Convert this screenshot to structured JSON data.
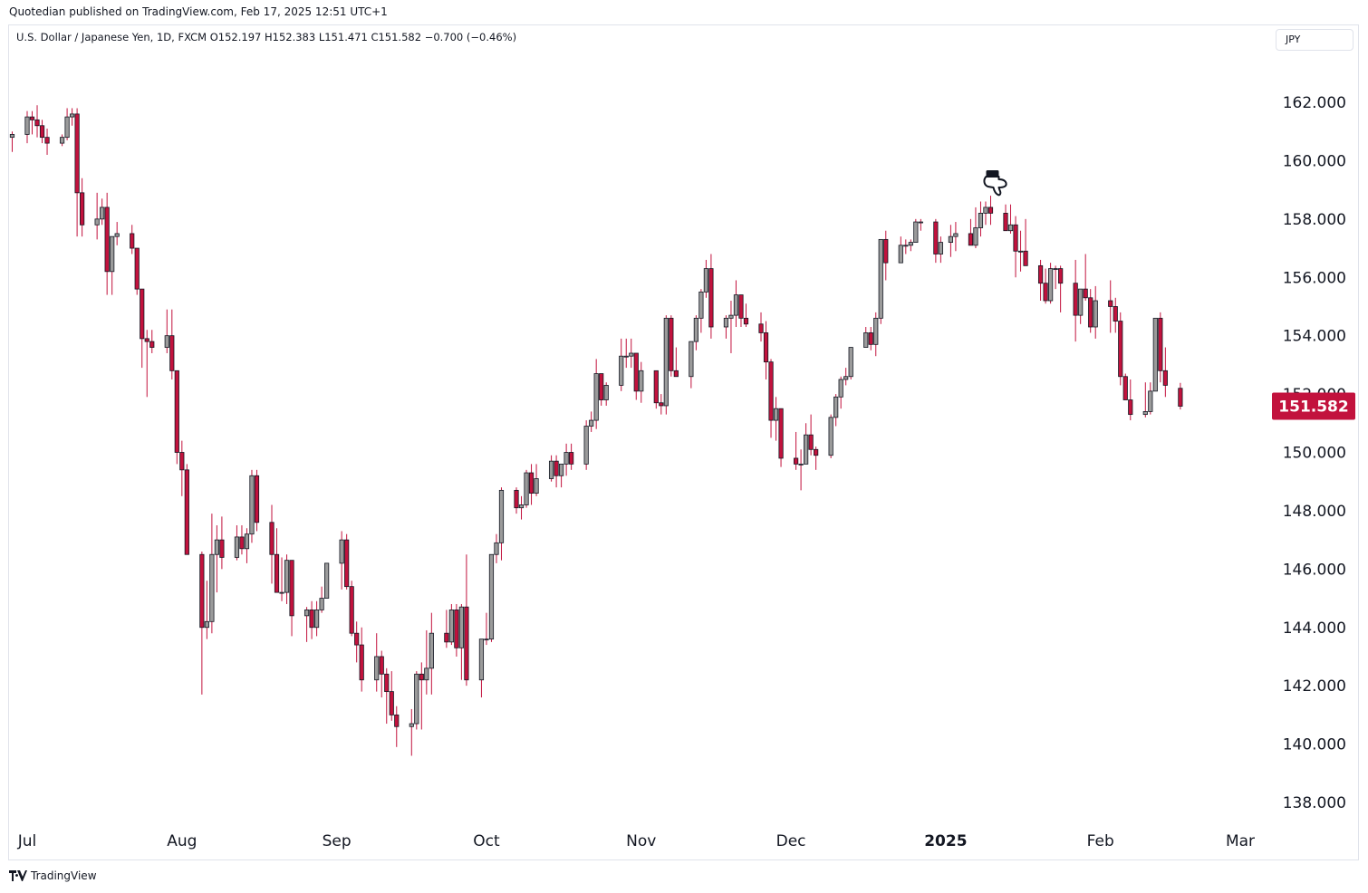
{
  "header": {
    "published": "Quotedian published on TradingView.com, Feb 17, 2025 12:51 UTC+1",
    "symbol_line": "U.S. Dollar / Japanese Yen, 1D, FXCM  O152.197  H152.383  L151.471  C151.582  −0.700 (−0.46%)",
    "currency": "JPY"
  },
  "footer": {
    "brand": "TradingView"
  },
  "colors": {
    "up": "#9b9b9b",
    "down": "#c2123d",
    "wick": "#c2123d",
    "last_price_bg": "#c2123d"
  },
  "annotation": {
    "icon": "pointing-hand-icon",
    "date": "2025-01-10"
  },
  "chart_data": {
    "type": "candlestick",
    "title": "U.S. Dollar / Japanese Yen, 1D, FXCM",
    "ylim": [
      137.0,
      164.5
    ],
    "yticks": [
      "162.000",
      "160.000",
      "158.000",
      "156.000",
      "154.000",
      "152.000",
      "150.000",
      "148.000",
      "146.000",
      "144.000",
      "142.000",
      "140.000",
      "138.000"
    ],
    "xticks": [
      {
        "label": "Jul",
        "date": "2024-07-01",
        "bold": false
      },
      {
        "label": "Aug",
        "date": "2024-08-01",
        "bold": false
      },
      {
        "label": "Sep",
        "date": "2024-09-01",
        "bold": false
      },
      {
        "label": "Oct",
        "date": "2024-10-01",
        "bold": false
      },
      {
        "label": "Nov",
        "date": "2024-11-01",
        "bold": false
      },
      {
        "label": "Dec",
        "date": "2024-12-01",
        "bold": false
      },
      {
        "label": "2025",
        "date": "2025-01-01",
        "bold": true
      },
      {
        "label": "Feb",
        "date": "2025-02-01",
        "bold": false
      },
      {
        "label": "Mar",
        "date": "2025-03-01",
        "bold": false
      }
    ],
    "last_price": "151.582",
    "candles": [
      [
        "2024-06-28",
        160.8,
        161.0,
        160.3,
        160.9
      ],
      [
        "2024-07-01",
        160.9,
        161.7,
        160.6,
        161.5
      ],
      [
        "2024-07-02",
        161.5,
        161.7,
        160.9,
        161.4
      ],
      [
        "2024-07-03",
        161.4,
        161.9,
        160.8,
        161.2
      ],
      [
        "2024-07-04",
        161.2,
        161.4,
        160.6,
        160.8
      ],
      [
        "2024-07-05",
        160.8,
        161.1,
        160.2,
        160.6
      ],
      [
        "2024-07-08",
        160.6,
        160.9,
        160.5,
        160.8
      ],
      [
        "2024-07-09",
        160.8,
        161.8,
        160.7,
        161.5
      ],
      [
        "2024-07-10",
        161.5,
        161.8,
        161.2,
        161.6
      ],
      [
        "2024-07-11",
        161.6,
        161.8,
        157.4,
        158.9
      ],
      [
        "2024-07-12",
        158.9,
        159.4,
        157.4,
        157.8
      ],
      [
        "2024-07-15",
        157.8,
        158.9,
        157.3,
        158.0
      ],
      [
        "2024-07-16",
        158.0,
        158.7,
        157.8,
        158.4
      ],
      [
        "2024-07-17",
        158.4,
        158.9,
        155.4,
        156.2
      ],
      [
        "2024-07-18",
        156.2,
        157.4,
        155.4,
        157.4
      ],
      [
        "2024-07-19",
        157.4,
        157.9,
        157.1,
        157.5
      ],
      [
        "2024-07-22",
        157.5,
        157.8,
        156.8,
        157.0
      ],
      [
        "2024-07-23",
        157.0,
        157.0,
        155.4,
        155.6
      ],
      [
        "2024-07-24",
        155.6,
        155.6,
        152.9,
        153.9
      ],
      [
        "2024-07-25",
        153.9,
        154.2,
        151.9,
        153.8
      ],
      [
        "2024-07-26",
        153.8,
        154.2,
        153.4,
        153.6
      ],
      [
        "2024-07-29",
        153.6,
        154.9,
        153.4,
        154.0
      ],
      [
        "2024-07-30",
        154.0,
        154.9,
        152.5,
        152.8
      ],
      [
        "2024-07-31",
        152.8,
        152.8,
        149.6,
        150.0
      ],
      [
        "2024-08-01",
        150.0,
        150.4,
        148.5,
        149.4
      ],
      [
        "2024-08-02",
        149.4,
        149.6,
        146.5,
        146.5
      ],
      [
        "2024-08-05",
        146.5,
        146.6,
        141.7,
        144.0
      ],
      [
        "2024-08-06",
        144.0,
        145.6,
        143.6,
        144.2
      ],
      [
        "2024-08-07",
        144.2,
        147.9,
        143.8,
        146.5
      ],
      [
        "2024-08-08",
        146.5,
        147.5,
        145.2,
        147.0
      ],
      [
        "2024-08-09",
        147.0,
        147.8,
        146.0,
        146.4
      ],
      [
        "2024-08-12",
        146.4,
        147.5,
        146.3,
        147.1
      ],
      [
        "2024-08-13",
        147.1,
        147.5,
        146.5,
        146.7
      ],
      [
        "2024-08-14",
        146.7,
        147.4,
        146.2,
        147.2
      ],
      [
        "2024-08-15",
        147.2,
        149.4,
        146.9,
        149.2
      ],
      [
        "2024-08-16",
        149.2,
        149.4,
        147.3,
        147.6
      ],
      [
        "2024-08-19",
        147.6,
        148.2,
        145.5,
        146.5
      ],
      [
        "2024-08-20",
        146.5,
        147.4,
        145.2,
        145.2
      ],
      [
        "2024-08-21",
        145.2,
        146.4,
        144.9,
        145.2
      ],
      [
        "2024-08-22",
        145.2,
        146.5,
        144.8,
        146.3
      ],
      [
        "2024-08-23",
        146.3,
        146.3,
        143.7,
        144.4
      ],
      [
        "2024-08-26",
        144.4,
        144.7,
        143.5,
        144.6
      ],
      [
        "2024-08-27",
        144.6,
        144.9,
        143.6,
        144.0
      ],
      [
        "2024-08-28",
        144.0,
        144.9,
        143.7,
        144.6
      ],
      [
        "2024-08-29",
        144.6,
        145.4,
        144.5,
        145.0
      ],
      [
        "2024-08-30",
        145.0,
        146.2,
        145.0,
        146.2
      ],
      [
        "2024-09-02",
        146.2,
        147.3,
        145.3,
        147.0
      ],
      [
        "2024-09-03",
        147.0,
        147.2,
        145.3,
        145.4
      ],
      [
        "2024-09-04",
        145.4,
        145.6,
        143.7,
        143.8
      ],
      [
        "2024-09-05",
        143.8,
        144.2,
        142.8,
        143.4
      ],
      [
        "2024-09-06",
        143.4,
        144.0,
        141.8,
        142.2
      ],
      [
        "2024-09-09",
        142.2,
        143.8,
        141.8,
        143.0
      ],
      [
        "2024-09-10",
        143.0,
        143.2,
        141.6,
        142.4
      ],
      [
        "2024-09-11",
        142.4,
        142.6,
        140.7,
        141.8
      ],
      [
        "2024-09-12",
        141.8,
        142.5,
        140.8,
        141.0
      ],
      [
        "2024-09-13",
        141.0,
        141.3,
        139.9,
        140.6
      ],
      [
        "2024-09-16",
        140.6,
        141.2,
        139.6,
        140.7
      ],
      [
        "2024-09-17",
        140.7,
        142.5,
        140.5,
        142.4
      ],
      [
        "2024-09-18",
        142.4,
        142.8,
        140.5,
        142.2
      ],
      [
        "2024-09-19",
        142.2,
        143.9,
        141.7,
        142.6
      ],
      [
        "2024-09-20",
        142.6,
        144.5,
        141.7,
        143.8
      ],
      [
        "2024-09-23",
        143.8,
        144.6,
        143.3,
        143.5
      ],
      [
        "2024-09-24",
        143.5,
        144.8,
        143.4,
        144.6
      ],
      [
        "2024-09-25",
        144.6,
        144.8,
        143.0,
        143.3
      ],
      [
        "2024-09-26",
        143.3,
        144.8,
        142.2,
        144.7
      ],
      [
        "2024-09-27",
        144.7,
        146.5,
        142.0,
        142.2
      ],
      [
        "2024-09-30",
        142.2,
        143.6,
        141.6,
        143.6
      ],
      [
        "2024-10-01",
        143.6,
        144.5,
        143.4,
        143.6
      ],
      [
        "2024-10-02",
        143.6,
        146.5,
        143.5,
        146.5
      ],
      [
        "2024-10-03",
        146.5,
        147.2,
        146.2,
        146.9
      ],
      [
        "2024-10-04",
        146.9,
        148.8,
        146.3,
        148.7
      ],
      [
        "2024-10-07",
        148.7,
        148.8,
        147.9,
        148.1
      ],
      [
        "2024-10-08",
        148.1,
        148.5,
        147.7,
        148.2
      ],
      [
        "2024-10-09",
        148.2,
        149.4,
        148.1,
        149.3
      ],
      [
        "2024-10-10",
        149.3,
        149.6,
        148.2,
        148.6
      ],
      [
        "2024-10-11",
        148.6,
        149.6,
        148.5,
        149.1
      ],
      [
        "2024-10-14",
        149.1,
        149.9,
        149.0,
        149.7
      ],
      [
        "2024-10-15",
        149.7,
        149.9,
        148.8,
        149.2
      ],
      [
        "2024-10-16",
        149.2,
        149.6,
        148.8,
        149.6
      ],
      [
        "2024-10-17",
        149.6,
        150.3,
        149.2,
        150.0
      ],
      [
        "2024-10-18",
        150.0,
        150.3,
        149.4,
        149.6
      ],
      [
        "2024-10-21",
        149.6,
        151.1,
        149.4,
        150.9
      ],
      [
        "2024-10-22",
        150.9,
        151.4,
        150.7,
        151.1
      ],
      [
        "2024-10-23",
        151.1,
        153.2,
        150.8,
        152.7
      ],
      [
        "2024-10-24",
        152.7,
        152.7,
        151.6,
        151.8
      ],
      [
        "2024-10-25",
        151.8,
        152.4,
        151.6,
        152.3
      ],
      [
        "2024-10-28",
        152.3,
        153.9,
        152.1,
        153.3
      ],
      [
        "2024-10-29",
        153.3,
        153.9,
        152.9,
        153.3
      ],
      [
        "2024-10-30",
        153.3,
        153.9,
        152.9,
        153.4
      ],
      [
        "2024-10-31",
        153.4,
        153.4,
        151.8,
        152.1
      ],
      [
        "2024-11-01",
        152.1,
        153.1,
        151.7,
        152.8
      ],
      [
        "2024-11-04",
        152.8,
        152.8,
        151.5,
        151.7
      ],
      [
        "2024-11-05",
        151.7,
        152.0,
        151.3,
        151.6
      ],
      [
        "2024-11-06",
        151.6,
        154.7,
        151.3,
        154.6
      ],
      [
        "2024-11-07",
        154.6,
        154.7,
        152.6,
        152.8
      ],
      [
        "2024-11-08",
        152.8,
        153.6,
        152.6,
        152.6
      ],
      [
        "2024-11-11",
        152.6,
        153.8,
        152.2,
        153.8
      ],
      [
        "2024-11-12",
        153.8,
        154.7,
        153.5,
        154.6
      ],
      [
        "2024-11-13",
        154.6,
        155.6,
        154.1,
        155.5
      ],
      [
        "2024-11-14",
        155.5,
        156.6,
        155.3,
        156.3
      ],
      [
        "2024-11-15",
        156.3,
        156.8,
        153.9,
        154.3
      ],
      [
        "2024-11-18",
        154.3,
        154.7,
        153.9,
        154.6
      ],
      [
        "2024-11-19",
        154.6,
        155.2,
        153.4,
        154.7
      ],
      [
        "2024-11-20",
        154.7,
        155.9,
        154.3,
        155.4
      ],
      [
        "2024-11-21",
        155.4,
        155.4,
        154.3,
        154.6
      ],
      [
        "2024-11-22",
        154.6,
        155.1,
        154.3,
        154.4
      ],
      [
        "2024-11-25",
        154.4,
        154.8,
        153.8,
        154.1
      ],
      [
        "2024-11-26",
        154.1,
        154.5,
        152.5,
        153.1
      ],
      [
        "2024-11-27",
        153.1,
        153.2,
        150.5,
        151.1
      ],
      [
        "2024-11-28",
        151.1,
        151.9,
        150.4,
        151.5
      ],
      [
        "2024-11-29",
        151.5,
        151.5,
        149.5,
        149.8
      ],
      [
        "2024-12-02",
        149.8,
        150.7,
        149.4,
        149.6
      ],
      [
        "2024-12-03",
        149.6,
        150.1,
        148.7,
        149.6
      ],
      [
        "2024-12-04",
        149.6,
        151.0,
        149.6,
        150.6
      ],
      [
        "2024-12-05",
        150.6,
        151.3,
        149.9,
        150.1
      ],
      [
        "2024-12-06",
        150.1,
        150.2,
        149.4,
        149.9
      ],
      [
        "2024-12-09",
        149.9,
        151.3,
        149.8,
        151.2
      ],
      [
        "2024-12-10",
        151.2,
        152.0,
        150.9,
        151.9
      ],
      [
        "2024-12-11",
        151.9,
        152.6,
        151.5,
        152.5
      ],
      [
        "2024-12-12",
        152.5,
        152.9,
        152.3,
        152.6
      ],
      [
        "2024-12-13",
        152.6,
        153.6,
        152.5,
        153.6
      ],
      [
        "2024-12-16",
        153.6,
        154.3,
        153.6,
        154.1
      ],
      [
        "2024-12-17",
        154.1,
        154.3,
        153.5,
        153.7
      ],
      [
        "2024-12-18",
        153.7,
        154.8,
        153.3,
        154.6
      ],
      [
        "2024-12-19",
        154.6,
        157.2,
        154.4,
        157.3
      ],
      [
        "2024-12-20",
        157.3,
        157.6,
        155.9,
        156.5
      ],
      [
        "2024-12-23",
        156.5,
        157.4,
        156.5,
        157.1
      ],
      [
        "2024-12-24",
        157.1,
        157.3,
        156.8,
        157.1
      ],
      [
        "2024-12-25",
        157.1,
        157.3,
        156.9,
        157.2
      ],
      [
        "2024-12-26",
        157.2,
        158.0,
        157.2,
        157.9
      ],
      [
        "2024-12-27",
        157.9,
        158.0,
        157.6,
        157.9
      ],
      [
        "2024-12-30",
        157.9,
        158.0,
        156.5,
        156.8
      ],
      [
        "2024-12-31",
        156.8,
        157.4,
        156.5,
        157.2
      ],
      [
        "2025-01-02",
        157.2,
        157.8,
        156.7,
        157.4
      ],
      [
        "2025-01-03",
        157.4,
        157.9,
        156.9,
        157.5
      ],
      [
        "2025-01-06",
        157.5,
        158.0,
        157.1,
        157.1
      ],
      [
        "2025-01-07",
        157.1,
        158.4,
        157.0,
        157.7
      ],
      [
        "2025-01-08",
        157.7,
        158.6,
        157.4,
        158.2
      ],
      [
        "2025-01-09",
        158.2,
        158.6,
        157.8,
        158.4
      ],
      [
        "2025-01-10",
        158.4,
        158.8,
        157.8,
        158.2
      ],
      [
        "2025-01-13",
        158.2,
        158.5,
        157.6,
        157.6
      ],
      [
        "2025-01-14",
        157.6,
        158.5,
        157.5,
        157.8
      ],
      [
        "2025-01-15",
        157.8,
        158.1,
        156.0,
        156.9
      ],
      [
        "2025-01-16",
        156.9,
        157.6,
        156.2,
        156.9
      ],
      [
        "2025-01-17",
        156.9,
        158.0,
        156.4,
        156.4
      ],
      [
        "2025-01-20",
        156.4,
        156.6,
        155.2,
        155.8
      ],
      [
        "2025-01-21",
        155.8,
        156.3,
        155.1,
        155.2
      ],
      [
        "2025-01-22",
        155.2,
        156.5,
        155.1,
        156.3
      ],
      [
        "2025-01-23",
        156.3,
        156.4,
        155.6,
        156.3
      ],
      [
        "2025-01-24",
        156.3,
        156.4,
        154.8,
        155.8
      ],
      [
        "2025-01-27",
        155.8,
        156.6,
        153.8,
        154.7
      ],
      [
        "2025-01-28",
        154.7,
        155.6,
        154.4,
        155.6
      ],
      [
        "2025-01-29",
        155.6,
        156.8,
        155.2,
        155.3
      ],
      [
        "2025-01-30",
        155.3,
        155.6,
        154.1,
        154.3
      ],
      [
        "2025-01-31",
        154.3,
        155.7,
        153.9,
        155.2
      ],
      [
        "2025-02-03",
        155.2,
        155.9,
        154.1,
        155.0
      ],
      [
        "2025-02-04",
        155.0,
        155.3,
        154.1,
        154.5
      ],
      [
        "2025-02-05",
        154.5,
        154.8,
        152.3,
        152.6
      ],
      [
        "2025-02-06",
        152.6,
        152.7,
        151.8,
        151.8
      ],
      [
        "2025-02-07",
        151.8,
        152.5,
        151.1,
        151.3
      ],
      [
        "2025-02-10",
        151.3,
        152.4,
        151.2,
        151.4
      ],
      [
        "2025-02-11",
        151.4,
        152.4,
        151.3,
        152.1
      ],
      [
        "2025-02-12",
        152.1,
        154.6,
        152.3,
        154.6
      ],
      [
        "2025-02-13",
        154.6,
        154.8,
        152.4,
        152.8
      ],
      [
        "2025-02-14",
        152.8,
        153.6,
        151.9,
        152.3
      ],
      [
        "2025-02-17",
        152.197,
        152.383,
        151.471,
        151.582
      ]
    ]
  }
}
